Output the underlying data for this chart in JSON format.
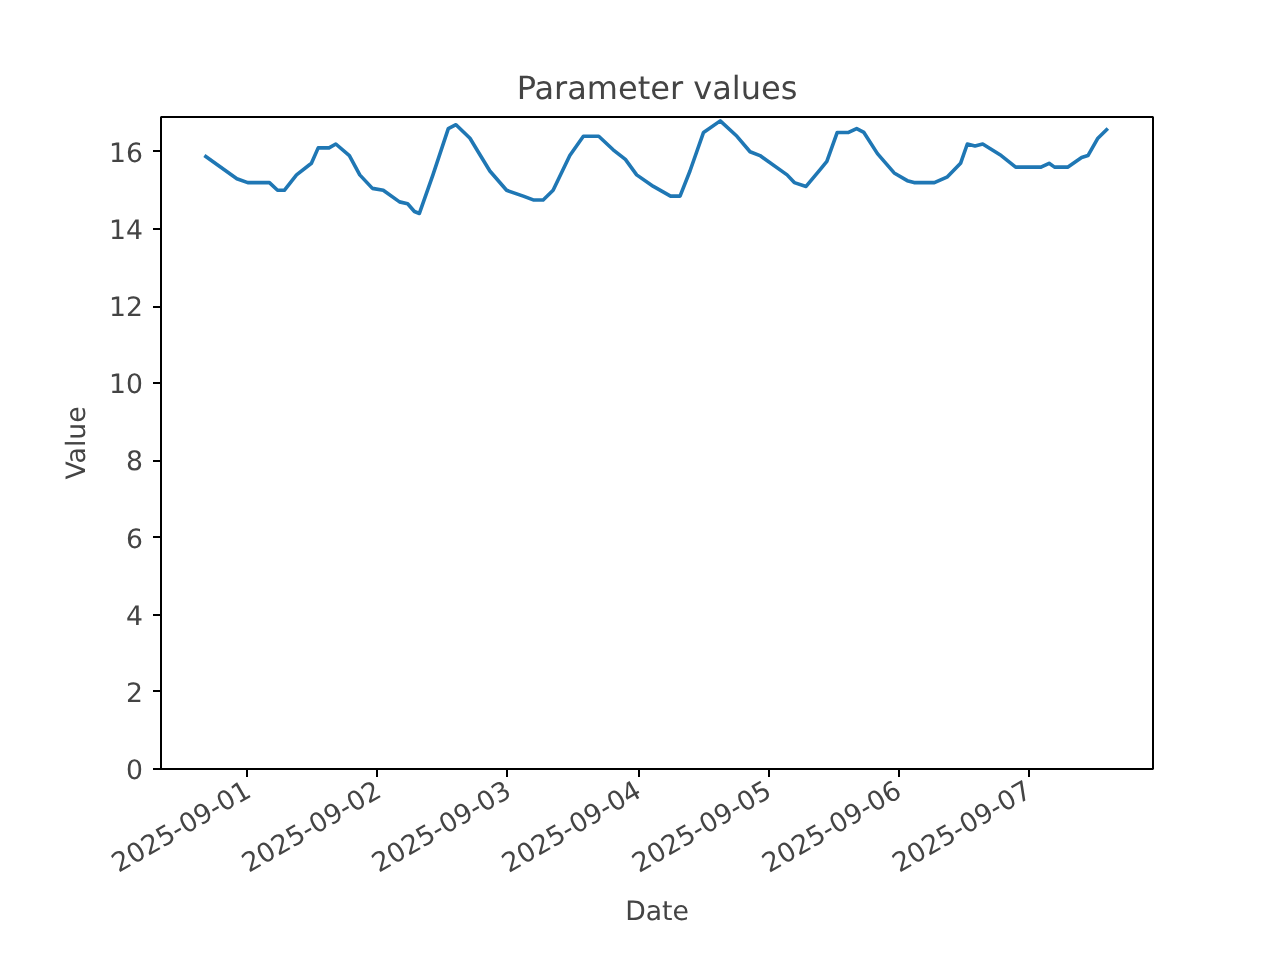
{
  "chart_data": {
    "type": "line",
    "title": "Parameter values",
    "xlabel": "Date",
    "ylabel": "Value",
    "xlim": [
      "2025-08-31T08:00",
      "2025-09-07T23:00"
    ],
    "ylim": [
      0,
      16.9
    ],
    "xticks": [
      "2025-09-01",
      "2025-09-02",
      "2025-09-03",
      "2025-09-04",
      "2025-09-05",
      "2025-09-06",
      "2025-09-07"
    ],
    "yticks": [
      0,
      2,
      4,
      6,
      8,
      10,
      12,
      14,
      16
    ],
    "grid": false,
    "line_style": "solid",
    "x": [
      "2025-08-31T16:00",
      "2025-08-31T22:00",
      "2025-09-01T00:00",
      "2025-09-01T04:00",
      "2025-09-01T05:30",
      "2025-09-01T06:45",
      "2025-09-01T09:00",
      "2025-09-01T11:45",
      "2025-09-01T13:00",
      "2025-09-01T15:00",
      "2025-09-01T16:15",
      "2025-09-01T18:45",
      "2025-09-01T20:40",
      "2025-09-01T23:00",
      "2025-09-02T01:00",
      "2025-09-02T04:00",
      "2025-09-02T05:30",
      "2025-09-02T06:45",
      "2025-09-02T07:40",
      "2025-09-02T10:10",
      "2025-09-02T13:00",
      "2025-09-02T14:25",
      "2025-09-02T17:00",
      "2025-09-02T18:30",
      "2025-09-02T20:40",
      "2025-09-02T23:45",
      "2025-09-03T02:50",
      "2025-09-03T04:40",
      "2025-09-03T06:30",
      "2025-09-03T08:20",
      "2025-09-03T11:25",
      "2025-09-03T13:55",
      "2025-09-03T16:45",
      "2025-09-03T19:25",
      "2025-09-03T21:40",
      "2025-09-03T23:45",
      "2025-09-04T02:50",
      "2025-09-04T06:00",
      "2025-09-04T07:45",
      "2025-09-04T09:35",
      "2025-09-04T12:05",
      "2025-09-04T15:10",
      "2025-09-04T18:15",
      "2025-09-04T20:40",
      "2025-09-04T22:30",
      "2025-09-05T03:30",
      "2025-09-05T04:50",
      "2025-09-05T07:00",
      "2025-09-05T09:40",
      "2025-09-05T10:50",
      "2025-09-05T12:45",
      "2025-09-05T14:50",
      "2025-09-05T16:20",
      "2025-09-05T17:40",
      "2025-09-05T20:10",
      "2025-09-05T23:15",
      "2025-09-06T01:40",
      "2025-09-06T02:55",
      "2025-09-06T06:40",
      "2025-09-06T09:05",
      "2025-09-06T11:30",
      "2025-09-06T12:45",
      "2025-09-06T14:10",
      "2025-09-06T15:35",
      "2025-09-06T19:00",
      "2025-09-06T21:40",
      "2025-09-07T02:20",
      "2025-09-07T03:50",
      "2025-09-07T04:50",
      "2025-09-07T07:15",
      "2025-09-07T09:50",
      "2025-09-07T11:00",
      "2025-09-07T12:50",
      "2025-09-07T14:40"
    ],
    "series": [
      {
        "color": "#1f77b4",
        "values": [
          15.9,
          15.3,
          15.2,
          15.2,
          15.0,
          15.0,
          15.4,
          15.7,
          16.1,
          16.1,
          16.2,
          15.9,
          15.4,
          15.05,
          15.0,
          14.7,
          14.65,
          14.45,
          14.4,
          15.4,
          16.6,
          16.7,
          16.35,
          16.0,
          15.5,
          15.0,
          14.85,
          14.75,
          14.75,
          15.0,
          15.9,
          16.4,
          16.4,
          16.05,
          15.8,
          15.4,
          15.1,
          14.85,
          14.85,
          15.5,
          16.5,
          16.8,
          16.4,
          16.0,
          15.9,
          15.4,
          15.2,
          15.1,
          15.55,
          15.75,
          16.5,
          16.5,
          16.6,
          16.5,
          15.95,
          15.45,
          15.25,
          15.2,
          15.2,
          15.35,
          15.7,
          16.2,
          16.15,
          16.2,
          15.9,
          15.6,
          15.6,
          15.7,
          15.6,
          15.6,
          15.85,
          15.9,
          16.35,
          16.6
        ]
      }
    ]
  }
}
